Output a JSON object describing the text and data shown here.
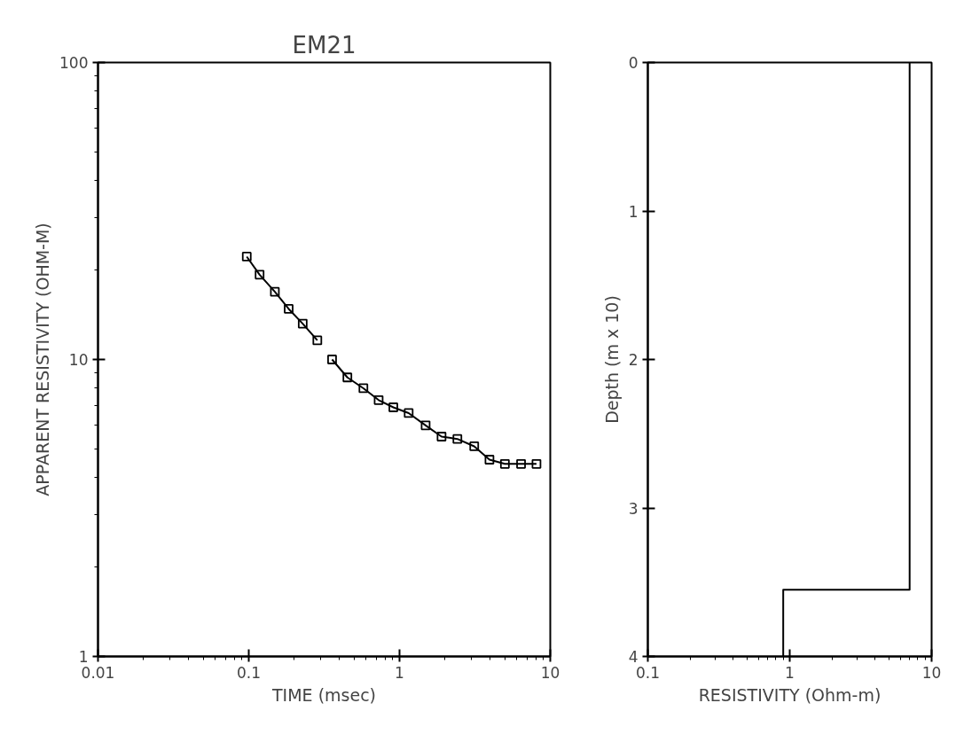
{
  "chart_data": [
    {
      "type": "scatter",
      "title": "EM21",
      "xlabel": "TIME (msec)",
      "ylabel": "APPARENT RESISTIVITY (OHM-M)",
      "log": "xy",
      "xlim": [
        0.01,
        10
      ],
      "ylim": [
        1,
        100
      ],
      "xticks": [
        0.01,
        0.1,
        1,
        10
      ],
      "yticks": [
        1,
        10,
        100
      ],
      "grid": false,
      "series": [
        {
          "marker": "square",
          "color": "#000000",
          "x": [
            0.097,
            0.118,
            0.149,
            0.184,
            0.228,
            0.285,
            0.357,
            0.451,
            0.576,
            0.727,
            0.91,
            1.15,
            1.49,
            1.9,
            2.42,
            3.13,
            3.95,
            5.0,
            6.4,
            8.1
          ],
          "values": [
            22.2,
            19.3,
            16.9,
            14.8,
            13.2,
            11.6,
            10.0,
            8.7,
            8.0,
            7.3,
            6.9,
            6.6,
            6.0,
            5.5,
            5.4,
            5.1,
            4.6,
            4.45,
            4.45,
            4.45
          ]
        },
        {
          "type": "line",
          "marker": "none",
          "color": "#000000",
          "x": [
            0.097,
            0.118,
            0.149,
            0.184,
            0.228,
            0.285,
            0.32,
            0.357,
            0.451,
            0.576,
            0.727,
            0.91,
            1.15,
            1.49,
            1.9,
            2.42,
            3.13,
            3.95,
            5.0,
            6.4,
            8.1
          ],
          "values": [
            22.2,
            19.3,
            16.9,
            14.8,
            13.2,
            11.6,
            null,
            10.0,
            8.7,
            8.0,
            7.3,
            6.9,
            6.6,
            6.0,
            5.5,
            5.4,
            5.1,
            4.6,
            4.45,
            4.45,
            4.45
          ]
        }
      ]
    },
    {
      "type": "line",
      "xlabel": "RESISTIVITY (Ohm-m)",
      "ylabel": "Depth (m x 10)",
      "log": "x",
      "xlim": [
        0.1,
        10
      ],
      "ylim": [
        4,
        0
      ],
      "xticks": [
        0.1,
        1,
        10
      ],
      "yticks": [
        0,
        1,
        2,
        3,
        4
      ],
      "grid": false,
      "series": [
        {
          "marker": "none",
          "color": "#000000",
          "x": [
            7,
            7,
            0.9,
            0.9
          ],
          "values": [
            0,
            3.55,
            3.55,
            4
          ]
        }
      ]
    }
  ]
}
